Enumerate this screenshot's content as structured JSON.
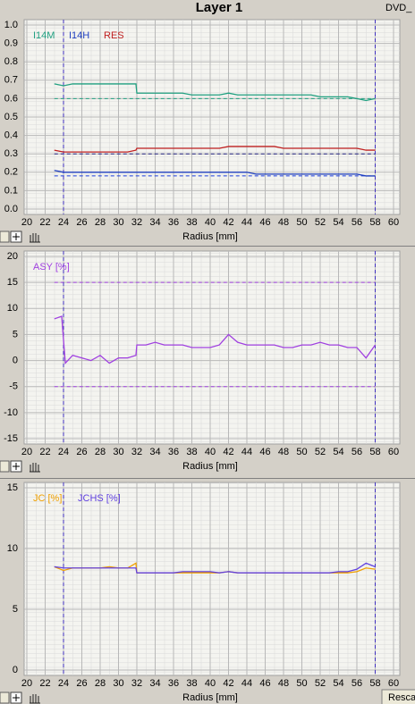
{
  "ui": {
    "tab": "DVD_",
    "button": "Resca"
  },
  "chart_data": [
    {
      "type": "line",
      "title": "Layer 1",
      "xlabel": "Radius [mm]",
      "x": [
        23,
        24,
        25,
        26,
        27,
        28,
        29,
        30,
        31,
        31.9,
        32,
        33,
        34,
        35,
        36,
        37,
        38,
        39,
        40,
        41,
        42,
        43,
        44,
        45,
        46,
        47,
        48,
        49,
        50,
        51,
        52,
        53,
        54,
        55,
        56,
        57,
        58
      ],
      "series": [
        {
          "name": "I14M",
          "color": "#20a080",
          "values": [
            0.68,
            0.67,
            0.68,
            0.68,
            0.68,
            0.68,
            0.68,
            0.68,
            0.68,
            0.68,
            0.63,
            0.63,
            0.63,
            0.63,
            0.63,
            0.63,
            0.62,
            0.62,
            0.62,
            0.62,
            0.63,
            0.62,
            0.62,
            0.62,
            0.62,
            0.62,
            0.62,
            0.62,
            0.62,
            0.62,
            0.61,
            0.61,
            0.61,
            0.61,
            0.6,
            0.59,
            0.6
          ]
        },
        {
          "name": "I14H",
          "color": "#2040c0",
          "values": [
            0.21,
            0.2,
            0.2,
            0.2,
            0.2,
            0.2,
            0.2,
            0.2,
            0.2,
            0.2,
            0.2,
            0.2,
            0.2,
            0.2,
            0.2,
            0.2,
            0.2,
            0.2,
            0.2,
            0.2,
            0.2,
            0.2,
            0.2,
            0.19,
            0.19,
            0.19,
            0.19,
            0.19,
            0.19,
            0.19,
            0.19,
            0.19,
            0.19,
            0.19,
            0.19,
            0.18,
            0.18
          ]
        },
        {
          "name": "RES",
          "color": "#c02020",
          "values": [
            0.32,
            0.31,
            0.31,
            0.31,
            0.31,
            0.31,
            0.31,
            0.31,
            0.31,
            0.32,
            0.33,
            0.33,
            0.33,
            0.33,
            0.33,
            0.33,
            0.33,
            0.33,
            0.33,
            0.33,
            0.34,
            0.34,
            0.34,
            0.34,
            0.34,
            0.34,
            0.33,
            0.33,
            0.33,
            0.33,
            0.33,
            0.33,
            0.33,
            0.33,
            0.33,
            0.32,
            0.32
          ]
        }
      ],
      "hlines": [
        {
          "value": 0.6,
          "color": "#20a080"
        },
        {
          "value": 0.3,
          "color": "#202080"
        },
        {
          "value": 0.18,
          "color": "#2040e0"
        }
      ],
      "vlines": {
        "values": [
          24,
          58
        ],
        "color": "#4030c0"
      },
      "xlim": [
        20,
        60
      ],
      "xticks": [
        20,
        22,
        24,
        26,
        28,
        30,
        32,
        34,
        36,
        38,
        40,
        42,
        44,
        46,
        48,
        50,
        52,
        54,
        56,
        58,
        60
      ],
      "ylim": [
        0,
        1
      ],
      "yticks": [
        {
          "value": 0,
          "label": "0.0"
        },
        0.1,
        0.2,
        0.3,
        0.4,
        0.5,
        0.6,
        0.7,
        0.8,
        0.9,
        {
          "value": 1,
          "label": "1.0"
        }
      ],
      "grid": true
    },
    {
      "type": "line",
      "xlabel": "Radius [mm]",
      "x": [
        23,
        23.8,
        24.2,
        25,
        26,
        27,
        28,
        29,
        30,
        31,
        31.9,
        32,
        33,
        34,
        35,
        36,
        37,
        38,
        39,
        40,
        41,
        42,
        43,
        44,
        45,
        46,
        47,
        48,
        49,
        50,
        51,
        52,
        53,
        54,
        55,
        56,
        57,
        58
      ],
      "series": [
        {
          "name": "ASY [%]",
          "color": "#a040e0",
          "values": [
            8,
            8.5,
            -0.5,
            1,
            0.5,
            0,
            1,
            -0.5,
            0.5,
            0.5,
            1,
            3,
            3,
            3.5,
            3,
            3,
            3,
            2.5,
            2.5,
            2.5,
            3,
            5,
            3.5,
            3,
            3,
            3,
            3,
            2.5,
            2.5,
            3,
            3,
            3.5,
            3,
            3,
            2.5,
            2.5,
            0.5,
            3
          ]
        }
      ],
      "hlines": [
        {
          "value": 15,
          "color": "#a040e0"
        },
        {
          "value": -5,
          "color": "#a040e0"
        }
      ],
      "vlines": {
        "values": [
          24,
          58
        ],
        "color": "#4030c0"
      },
      "xlim": [
        20,
        60
      ],
      "xticks": [
        20,
        22,
        24,
        26,
        28,
        30,
        32,
        34,
        36,
        38,
        40,
        42,
        44,
        46,
        48,
        50,
        52,
        54,
        56,
        58,
        60
      ],
      "ylim": [
        -15,
        20
      ],
      "yticks": [
        -15,
        -10,
        -5,
        0,
        5,
        10,
        15,
        20
      ],
      "grid": true
    },
    {
      "type": "line",
      "xlabel": "Radius [mm]",
      "x": [
        23,
        24,
        25,
        26,
        27,
        28,
        29,
        30,
        31,
        31.9,
        32,
        33,
        34,
        35,
        36,
        37,
        38,
        39,
        40,
        41,
        42,
        43,
        44,
        45,
        46,
        47,
        48,
        49,
        50,
        51,
        52,
        53,
        54,
        55,
        56,
        57,
        58
      ],
      "series": [
        {
          "name": "JC [%]",
          "color": "#f0a000",
          "values": [
            8.5,
            8.2,
            8.4,
            8.4,
            8.4,
            8.4,
            8.5,
            8.4,
            8.4,
            8.8,
            8,
            8,
            8,
            8,
            8,
            8,
            8,
            8,
            8,
            8,
            8.1,
            8,
            8,
            8,
            8,
            8,
            8,
            8,
            8,
            8,
            8,
            8,
            8,
            8,
            8.1,
            8.4,
            8.3
          ]
        },
        {
          "name": "JCHS [%]",
          "color": "#6040e0",
          "values": [
            8.5,
            8.4,
            8.4,
            8.4,
            8.4,
            8.4,
            8.4,
            8.4,
            8.4,
            8.4,
            8,
            8,
            8,
            8,
            8,
            8.1,
            8.1,
            8.1,
            8.1,
            8,
            8.1,
            8,
            8,
            8,
            8,
            8,
            8,
            8,
            8,
            8,
            8,
            8,
            8.1,
            8.1,
            8.3,
            8.8,
            8.5
          ]
        }
      ],
      "vlines": {
        "values": [
          24,
          58
        ],
        "color": "#4030c0"
      },
      "xlim": [
        20,
        60
      ],
      "xticks": [
        20,
        22,
        24,
        26,
        28,
        30,
        32,
        34,
        36,
        38,
        40,
        42,
        44,
        46,
        48,
        50,
        52,
        54,
        56,
        58,
        60
      ],
      "ylim": [
        0,
        15
      ],
      "yticks": [
        0,
        5,
        10,
        15
      ],
      "grid": true
    }
  ]
}
